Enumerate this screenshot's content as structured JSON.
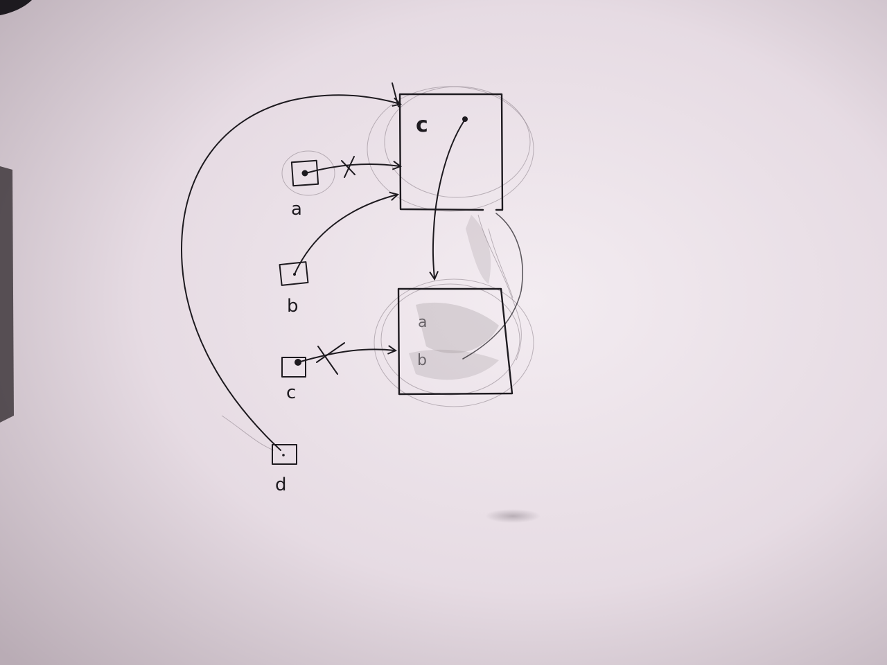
{
  "diagram": {
    "objects": [
      {
        "id": "obj-c",
        "label": "c",
        "slots": []
      },
      {
        "id": "obj-lower",
        "label": "",
        "slots": [
          "a",
          "b"
        ]
      }
    ],
    "variables": [
      {
        "id": "var-a",
        "label": "a",
        "points_to": "obj-c",
        "crossed_out": true
      },
      {
        "id": "var-b",
        "label": "b",
        "points_to": "obj-c",
        "crossed_out": false
      },
      {
        "id": "var-c",
        "label": "c",
        "points_to": "obj-lower",
        "crossed_out": true
      },
      {
        "id": "var-d",
        "label": "d",
        "points_to": "obj-c",
        "crossed_out": false
      }
    ],
    "references": [
      {
        "from": "obj-c",
        "to": "obj-lower"
      }
    ],
    "colors": {
      "paper": "#d9cdd6",
      "ink": "#1d1a1f",
      "smudge": "#8a8088"
    }
  }
}
